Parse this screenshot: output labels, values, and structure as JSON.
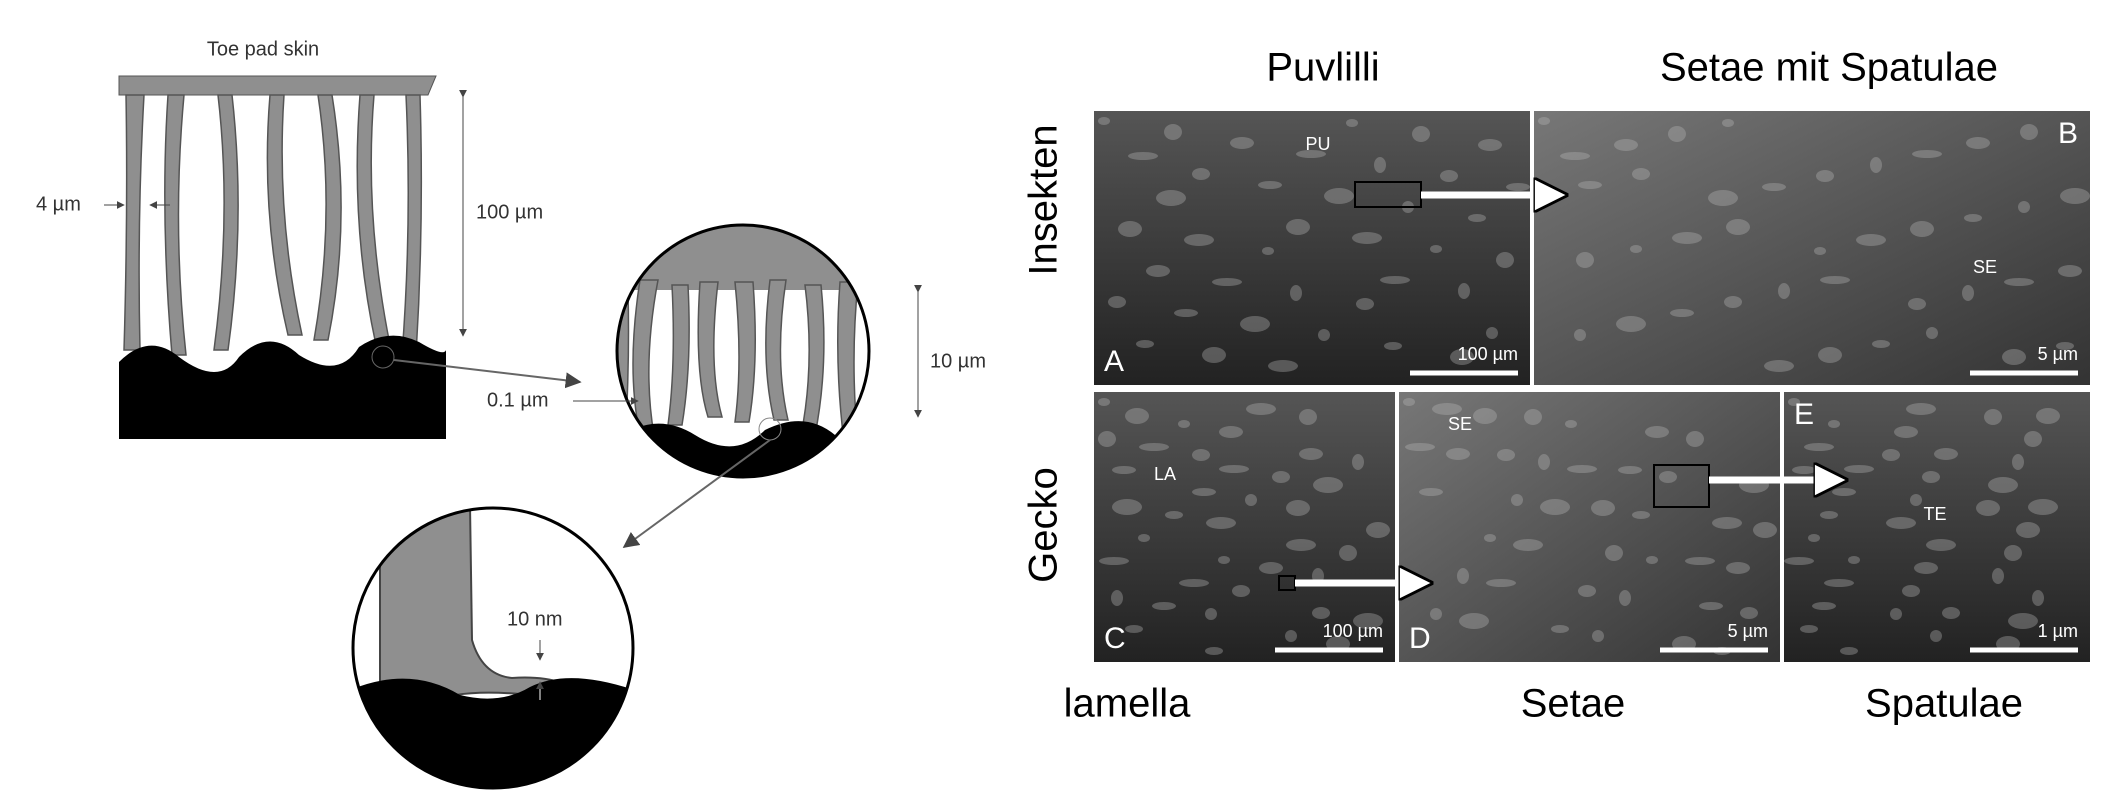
{
  "left_diagram": {
    "title": "Toe pad skin",
    "pillar_width": "4 µm",
    "pillar_height": "100 µm",
    "zoom1_height": "10 µm",
    "zoom1_width": "0.1 µm",
    "contact_gap": "10 nm"
  },
  "right_figure": {
    "column_headers": [
      "Puvlilli",
      "Setae mit Spatulae"
    ],
    "row_labels": [
      "Insekten",
      "Gecko"
    ],
    "bottom_labels": [
      "lamella",
      "Setae",
      "Spatulae"
    ],
    "panels": [
      {
        "letter": "A",
        "annotation": "PU",
        "scale_bar": "100 µm"
      },
      {
        "letter": "B",
        "annotation": "SE",
        "scale_bar": "5 µm"
      },
      {
        "letter": "C",
        "annotation": "LA",
        "scale_bar": "100 µm"
      },
      {
        "letter": "D",
        "annotation": "SE",
        "scale_bar": "5 µm"
      },
      {
        "letter": "E",
        "annotation": "TE",
        "scale_bar": "1 µm"
      }
    ]
  }
}
